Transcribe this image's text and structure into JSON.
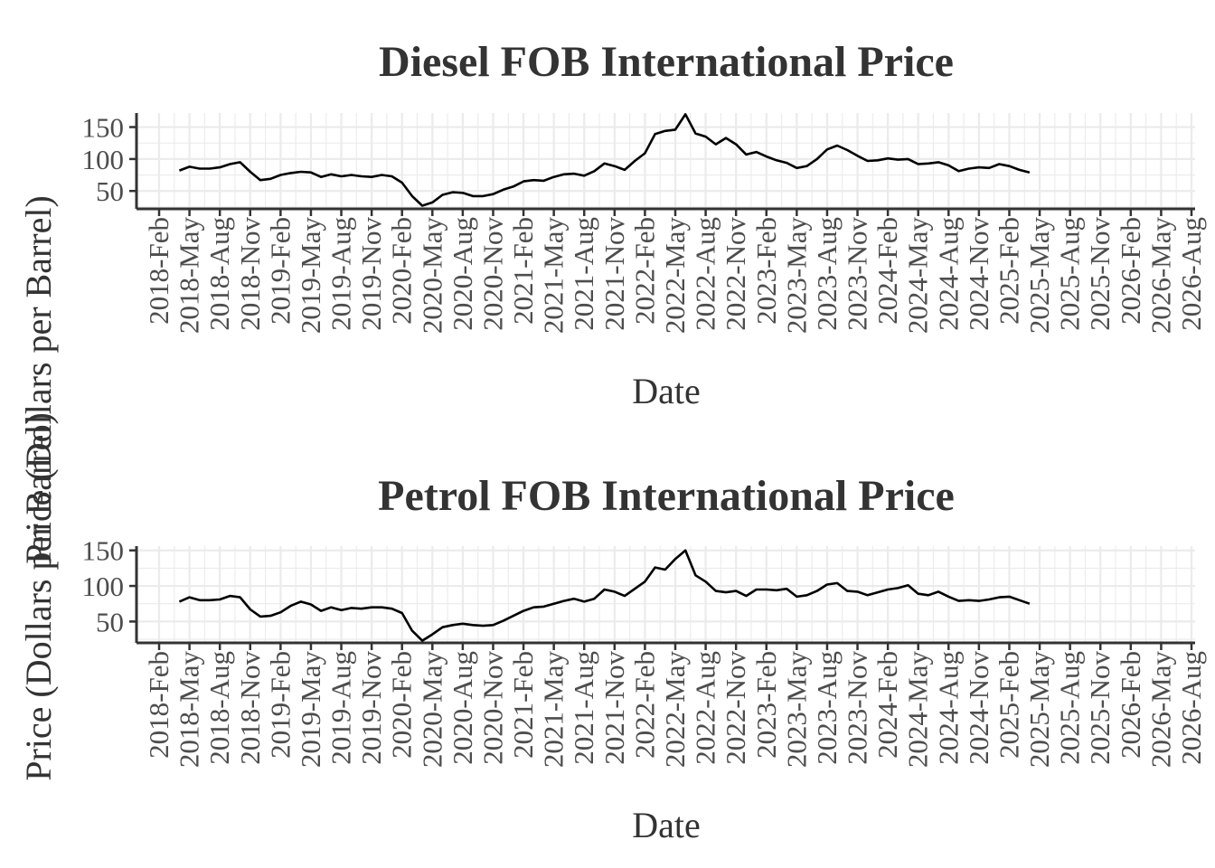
{
  "chart_data": [
    {
      "type": "line",
      "title": "Diesel FOB International Price",
      "xlabel": "Date",
      "ylabel": "Price (Dollars per Barrel)",
      "x_ticks": [
        "2018-Feb",
        "2018-May",
        "2018-Aug",
        "2018-Nov",
        "2019-Feb",
        "2019-May",
        "2019-Aug",
        "2019-Nov",
        "2020-Feb",
        "2020-May",
        "2020-Aug",
        "2020-Nov",
        "2021-Feb",
        "2021-May",
        "2021-Aug",
        "2021-Nov",
        "2022-Feb",
        "2022-May",
        "2022-Aug",
        "2022-Nov",
        "2023-Feb",
        "2023-May",
        "2023-Aug",
        "2023-Nov",
        "2024-Feb",
        "2024-May",
        "2024-Aug",
        "2024-Nov",
        "2025-Feb",
        "2025-May",
        "2025-Aug",
        "2025-Nov",
        "2026-Feb",
        "2026-May",
        "2026-Aug"
      ],
      "y_ticks": [
        50,
        100,
        150
      ],
      "xlim": [
        "2018-02",
        "2026-08"
      ],
      "ylim": [
        22,
        172
      ],
      "grid": true,
      "x": [
        "2018-04",
        "2018-05",
        "2018-06",
        "2018-07",
        "2018-08",
        "2018-09",
        "2018-10",
        "2018-11",
        "2018-12",
        "2019-01",
        "2019-02",
        "2019-03",
        "2019-04",
        "2019-05",
        "2019-06",
        "2019-07",
        "2019-08",
        "2019-09",
        "2019-10",
        "2019-11",
        "2019-12",
        "2020-01",
        "2020-02",
        "2020-03",
        "2020-04",
        "2020-05",
        "2020-06",
        "2020-07",
        "2020-08",
        "2020-09",
        "2020-10",
        "2020-11",
        "2020-12",
        "2021-01",
        "2021-02",
        "2021-03",
        "2021-04",
        "2021-05",
        "2021-06",
        "2021-07",
        "2021-08",
        "2021-09",
        "2021-10",
        "2021-11",
        "2021-12",
        "2022-01",
        "2022-02",
        "2022-03",
        "2022-04",
        "2022-05",
        "2022-06",
        "2022-07",
        "2022-08",
        "2022-09",
        "2022-10",
        "2022-11",
        "2022-12",
        "2023-01",
        "2023-02",
        "2023-03",
        "2023-04",
        "2023-05",
        "2023-06",
        "2023-07",
        "2023-08",
        "2023-09",
        "2023-10",
        "2023-11",
        "2023-12",
        "2024-01",
        "2024-02",
        "2024-03",
        "2024-04",
        "2024-05",
        "2024-06",
        "2024-07",
        "2024-08",
        "2024-09",
        "2024-10",
        "2024-11",
        "2024-12",
        "2025-01",
        "2025-02",
        "2025-03",
        "2025-04"
      ],
      "series": [
        {
          "values": [
            82,
            88,
            85,
            85,
            87,
            92,
            95,
            80,
            67,
            69,
            75,
            78,
            80,
            79,
            72,
            76,
            73,
            75,
            73,
            72,
            75,
            73,
            63,
            42,
            27,
            32,
            44,
            48,
            47,
            42,
            42,
            45,
            52,
            57,
            65,
            67,
            66,
            72,
            76,
            77,
            74,
            81,
            93,
            89,
            83,
            97,
            109,
            139,
            144,
            146,
            170,
            140,
            135,
            123,
            133,
            123,
            107,
            111,
            104,
            98,
            94,
            86,
            89,
            100,
            115,
            121,
            114,
            105,
            97,
            98,
            101,
            99,
            100,
            92,
            93,
            95,
            90,
            81,
            85,
            87,
            86,
            92,
            89,
            83,
            79
          ]
        }
      ]
    },
    {
      "type": "line",
      "title": "Petrol FOB International Price",
      "xlabel": "Date",
      "ylabel": "Price (Dollars per Barrel)",
      "x_ticks": [
        "2018-Feb",
        "2018-May",
        "2018-Aug",
        "2018-Nov",
        "2019-Feb",
        "2019-May",
        "2019-Aug",
        "2019-Nov",
        "2020-Feb",
        "2020-May",
        "2020-Aug",
        "2020-Nov",
        "2021-Feb",
        "2021-May",
        "2021-Aug",
        "2021-Nov",
        "2022-Feb",
        "2022-May",
        "2022-Aug",
        "2022-Nov",
        "2023-Feb",
        "2023-May",
        "2023-Aug",
        "2023-Nov",
        "2024-Feb",
        "2024-May",
        "2024-Aug",
        "2024-Nov",
        "2025-Feb",
        "2025-May",
        "2025-Aug",
        "2025-Nov",
        "2026-Feb",
        "2026-May",
        "2026-Aug"
      ],
      "y_ticks": [
        50,
        100,
        150
      ],
      "xlim": [
        "2018-02",
        "2026-08"
      ],
      "ylim": [
        20,
        156
      ],
      "grid": true,
      "x": [
        "2018-04",
        "2018-05",
        "2018-06",
        "2018-07",
        "2018-08",
        "2018-09",
        "2018-10",
        "2018-11",
        "2018-12",
        "2019-01",
        "2019-02",
        "2019-03",
        "2019-04",
        "2019-05",
        "2019-06",
        "2019-07",
        "2019-08",
        "2019-09",
        "2019-10",
        "2019-11",
        "2019-12",
        "2020-01",
        "2020-02",
        "2020-03",
        "2020-04",
        "2020-05",
        "2020-06",
        "2020-07",
        "2020-08",
        "2020-09",
        "2020-10",
        "2020-11",
        "2020-12",
        "2021-01",
        "2021-02",
        "2021-03",
        "2021-04",
        "2021-05",
        "2021-06",
        "2021-07",
        "2021-08",
        "2021-09",
        "2021-10",
        "2021-11",
        "2021-12",
        "2022-01",
        "2022-02",
        "2022-03",
        "2022-04",
        "2022-05",
        "2022-06",
        "2022-07",
        "2022-08",
        "2022-09",
        "2022-10",
        "2022-11",
        "2022-12",
        "2023-01",
        "2023-02",
        "2023-03",
        "2023-04",
        "2023-05",
        "2023-06",
        "2023-07",
        "2023-08",
        "2023-09",
        "2023-10",
        "2023-11",
        "2023-12",
        "2024-01",
        "2024-02",
        "2024-03",
        "2024-04",
        "2024-05",
        "2024-06",
        "2024-07",
        "2024-08",
        "2024-09",
        "2024-10",
        "2024-11",
        "2024-12",
        "2025-01",
        "2025-02",
        "2025-03",
        "2025-04"
      ],
      "series": [
        {
          "values": [
            78,
            84,
            80,
            80,
            81,
            86,
            84,
            67,
            57,
            58,
            63,
            72,
            78,
            74,
            65,
            70,
            66,
            69,
            68,
            70,
            70,
            68,
            62,
            37,
            23,
            32,
            42,
            45,
            47,
            45,
            44,
            45,
            51,
            58,
            65,
            70,
            71,
            75,
            79,
            82,
            78,
            82,
            95,
            92,
            86,
            96,
            106,
            126,
            123,
            138,
            150,
            115,
            106,
            93,
            91,
            93,
            86,
            95,
            95,
            94,
            96,
            85,
            87,
            93,
            102,
            104,
            93,
            92,
            87,
            91,
            95,
            97,
            101,
            89,
            87,
            92,
            85,
            79,
            80,
            79,
            81,
            84,
            85,
            80,
            75
          ]
        }
      ]
    }
  ]
}
